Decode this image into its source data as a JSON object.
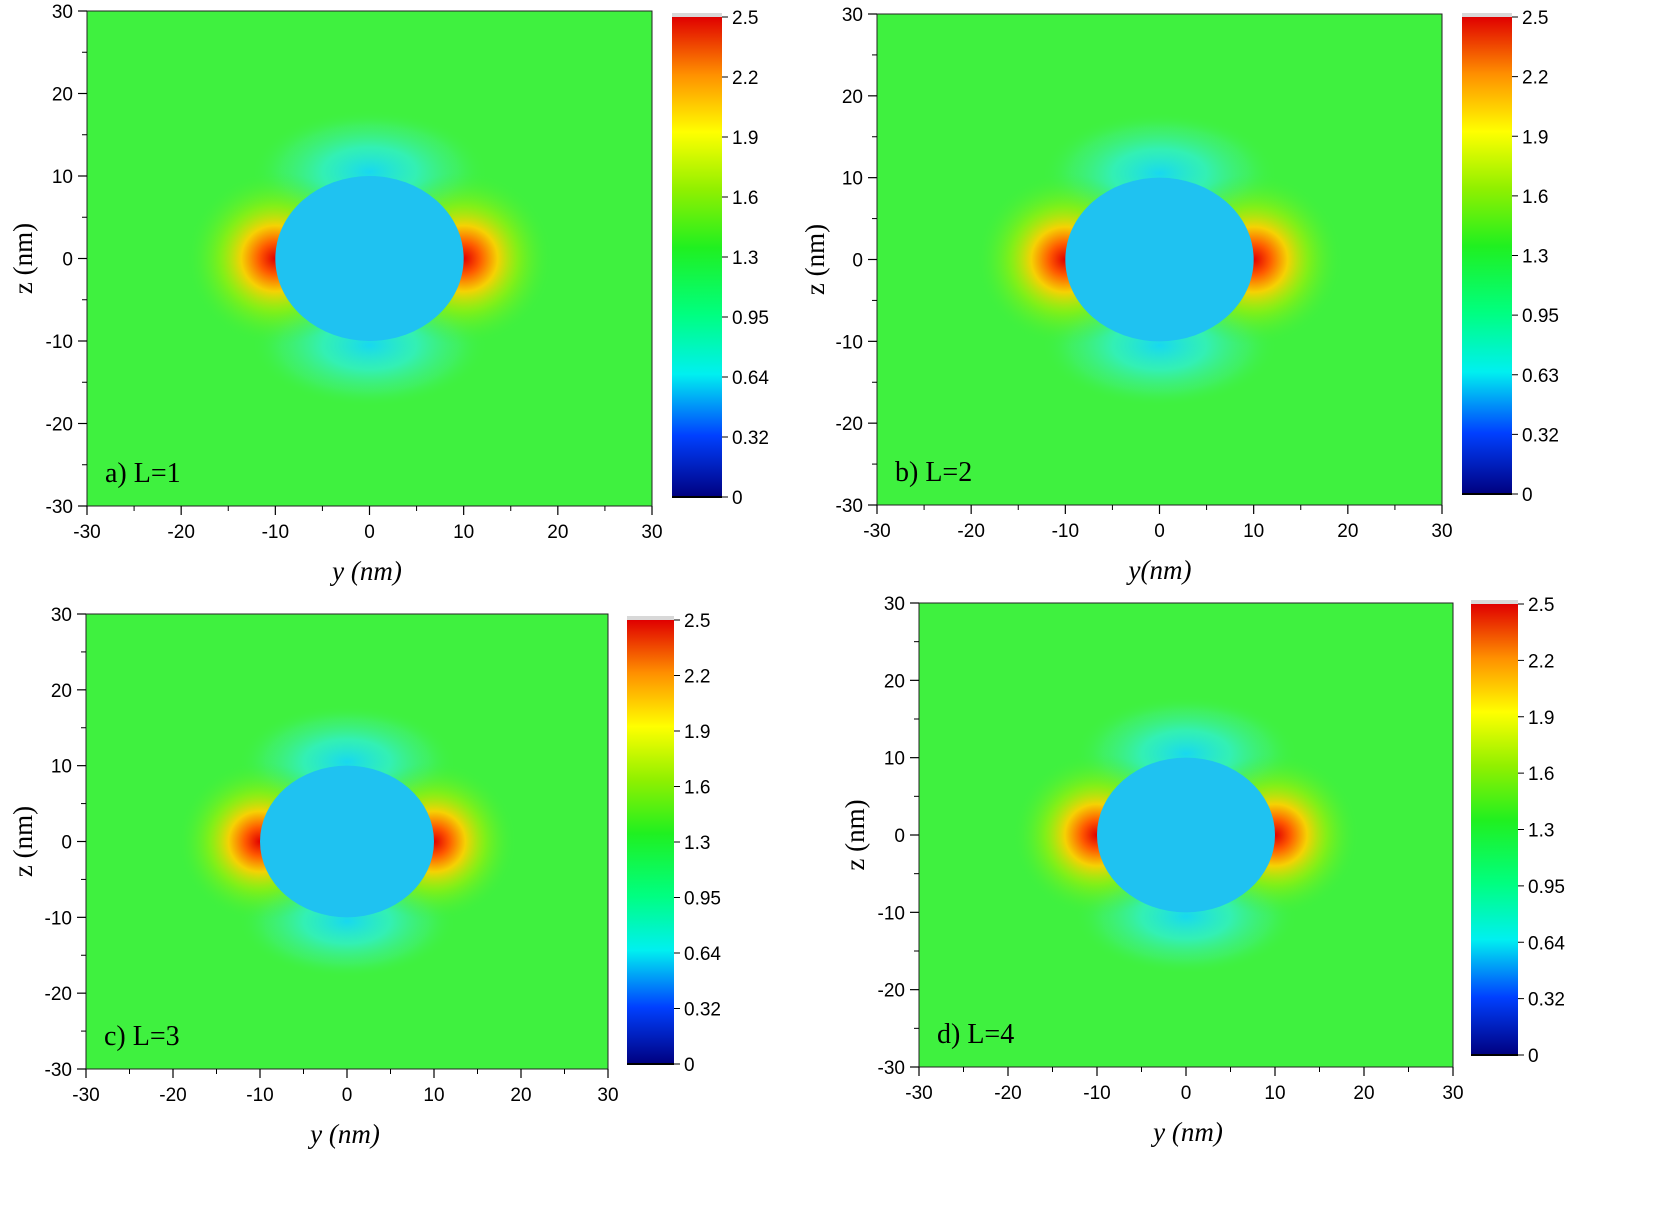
{
  "chart_data": [
    {
      "type": "heatmap",
      "panel_label": "a)  L=1",
      "xlabel": "y (nm)",
      "ylabel": "z (nm)",
      "xlim": [
        -30,
        30
      ],
      "ylim": [
        -30,
        30
      ],
      "x_ticks": [
        "-30",
        "-20",
        "-10",
        "0",
        "10",
        "20",
        "30"
      ],
      "y_ticks": [
        "30",
        "20",
        "10",
        "0",
        "-10",
        "-20",
        "-30"
      ],
      "colorbar": {
        "min": 0,
        "max": 2.5,
        "ticks": [
          "2.5",
          "2.2",
          "1.9",
          "1.6",
          "1.3",
          "0.95",
          "0.64",
          "0.32",
          "0"
        ]
      },
      "field": {
        "background": 1.2,
        "particle": "sphere",
        "particle_radius_nm": 10,
        "particle_value": 0.62,
        "hot_spots": "±y poles ≈ 2.5",
        "cold_spots": "±z poles ≈ 0.64"
      }
    },
    {
      "type": "heatmap",
      "panel_label": "b)  L=2",
      "xlabel": "y(nm)",
      "ylabel": "z (nm)",
      "xlim": [
        -30,
        30
      ],
      "ylim": [
        -30,
        30
      ],
      "x_ticks": [
        "-30",
        "-20",
        "-10",
        "0",
        "10",
        "20",
        "30"
      ],
      "y_ticks": [
        "30",
        "20",
        "10",
        "0",
        "-10",
        "-20",
        "-30"
      ],
      "colorbar": {
        "min": 0,
        "max": 2.5,
        "ticks": [
          "2.5",
          "2.2",
          "1.9",
          "1.6",
          "1.3",
          "0.95",
          "0.63",
          "0.32",
          "0"
        ]
      },
      "field": {
        "background": 1.2,
        "particle": "sphere",
        "particle_radius_nm": 10,
        "particle_value": 0.62,
        "hot_spots": "±y poles ≈ 2.5",
        "cold_spots": "±z poles ≈ 0.64"
      }
    },
    {
      "type": "heatmap",
      "panel_label": "c)  L=3",
      "xlabel": "y (nm)",
      "ylabel": "z (nm)",
      "xlim": [
        -30,
        30
      ],
      "ylim": [
        -30,
        30
      ],
      "x_ticks": [
        "-30",
        "-20",
        "-10",
        "0",
        "10",
        "20",
        "30"
      ],
      "y_ticks": [
        "30",
        "20",
        "10",
        "0",
        "-10",
        "-20",
        "-30"
      ],
      "colorbar": {
        "min": 0,
        "max": 2.5,
        "ticks": [
          "2.5",
          "2.2",
          "1.9",
          "1.6",
          "1.3",
          "0.95",
          "0.64",
          "0.32",
          "0"
        ]
      },
      "field": {
        "background": 1.2,
        "particle": "sphere",
        "particle_radius_nm": 10,
        "particle_value": 0.62,
        "hot_spots": "±y poles ≈ 2.5",
        "cold_spots": "±z poles ≈ 0.64"
      }
    },
    {
      "type": "heatmap",
      "panel_label": "d)  L=4",
      "xlabel": "y (nm)",
      "ylabel": "z (nm)",
      "xlim": [
        -30,
        30
      ],
      "ylim": [
        -30,
        30
      ],
      "x_ticks": [
        "-30",
        "-20",
        "-10",
        "0",
        "10",
        "20",
        "30"
      ],
      "y_ticks": [
        "30",
        "20",
        "10",
        "0",
        "-10",
        "-20",
        "-30"
      ],
      "colorbar": {
        "min": 0,
        "max": 2.5,
        "ticks": [
          "2.5",
          "2.2",
          "1.9",
          "1.6",
          "1.3",
          "0.95",
          "0.64",
          "0.32",
          "0"
        ]
      },
      "field": {
        "background": 1.2,
        "particle": "sphere",
        "particle_radius_nm": 10,
        "particle_value": 0.62,
        "hot_spots": "±y poles ≈ 2.5",
        "cold_spots": "±z poles ≈ 0.64"
      }
    }
  ],
  "colormap": {
    "stops": [
      {
        "value": 0.0,
        "color": "#00007f"
      },
      {
        "value": 0.32,
        "color": "#0040ff"
      },
      {
        "value": 0.64,
        "color": "#00f0f0"
      },
      {
        "value": 0.95,
        "color": "#00ff80"
      },
      {
        "value": 1.3,
        "color": "#20f020"
      },
      {
        "value": 1.6,
        "color": "#90f000"
      },
      {
        "value": 1.9,
        "color": "#ffff00"
      },
      {
        "value": 2.2,
        "color": "#ff9000"
      },
      {
        "value": 2.5,
        "color": "#e00000"
      }
    ],
    "background_color": "#3ff13f",
    "particle_color": "#1fc2f1"
  }
}
